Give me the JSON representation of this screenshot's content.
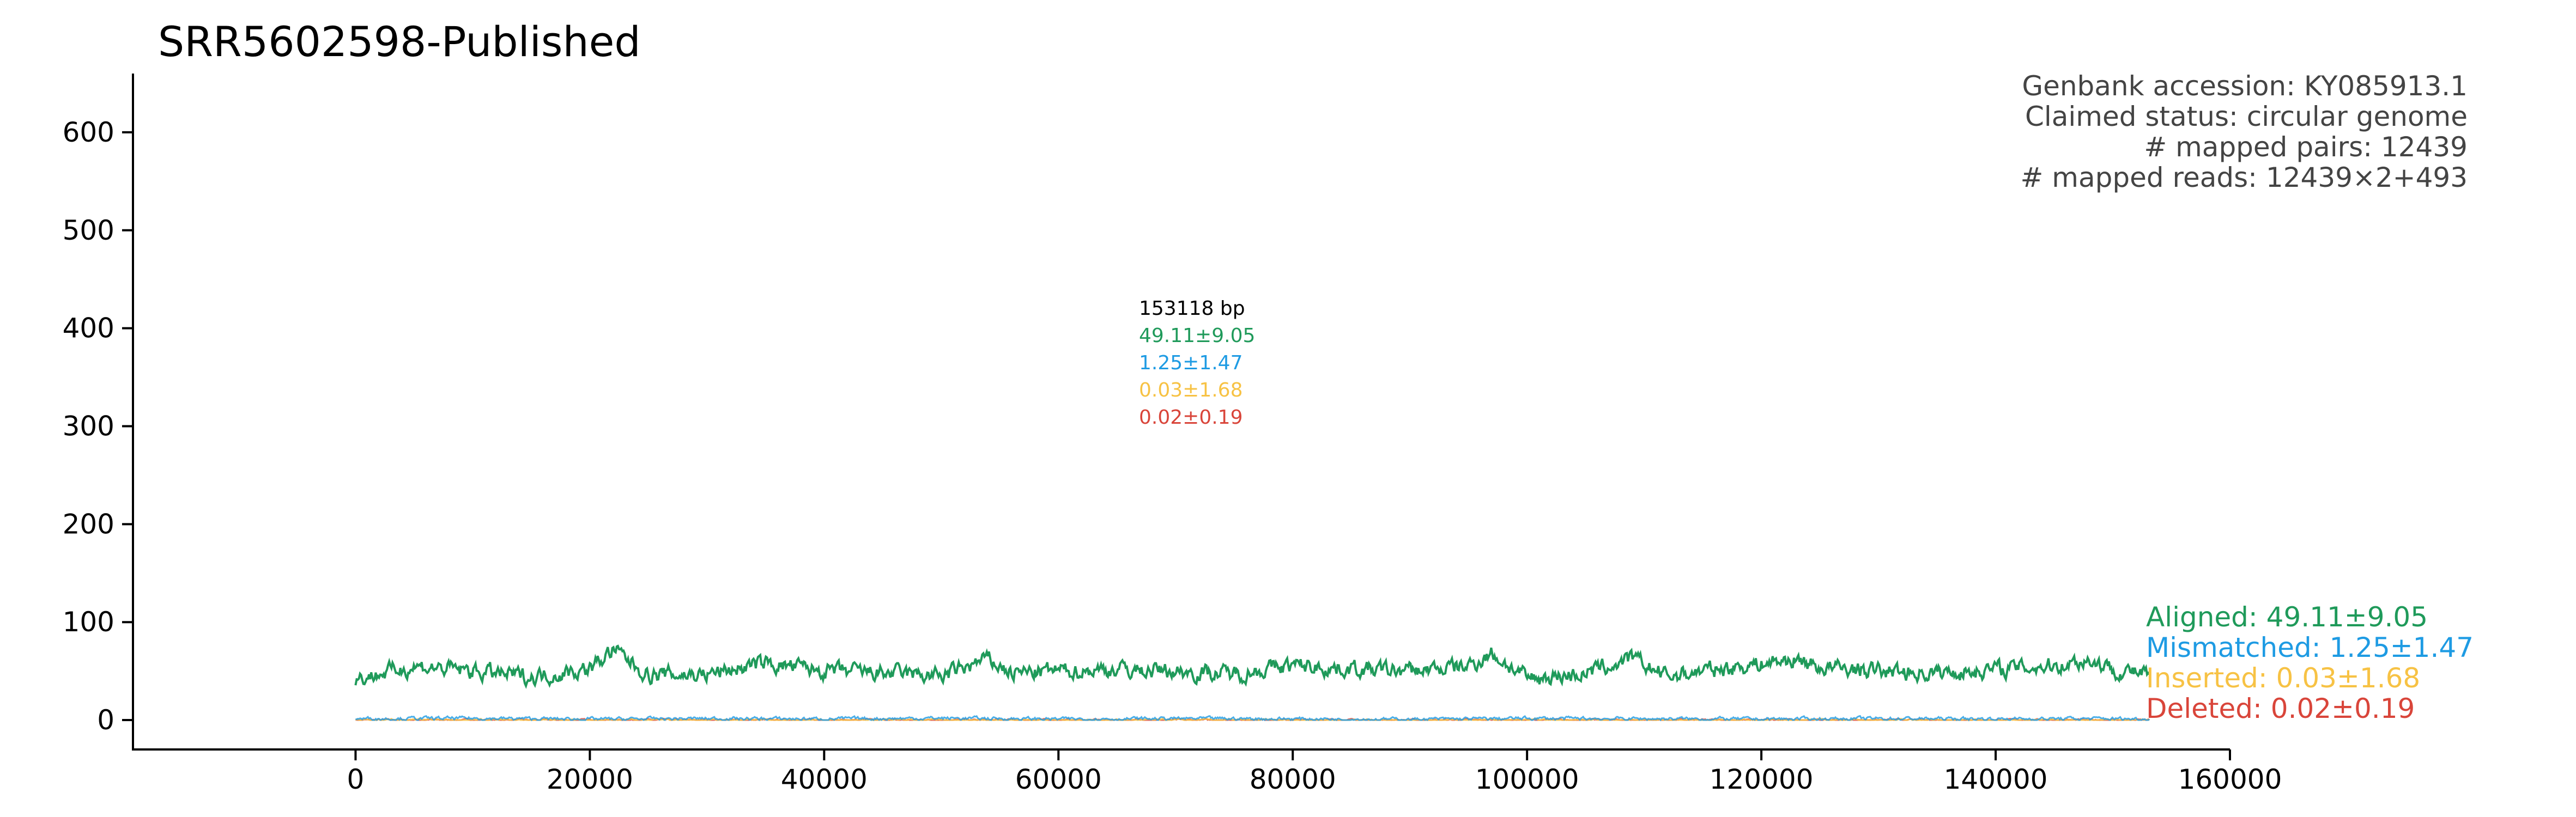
{
  "chart_data": {
    "type": "line",
    "title": "SRR5602598-Published",
    "xlabel": "",
    "ylabel": "",
    "xlim": [
      -19000,
      160000
    ],
    "ylim": [
      -30,
      660
    ],
    "x_ticks": [
      0,
      20000,
      40000,
      60000,
      80000,
      100000,
      120000,
      140000,
      160000
    ],
    "y_ticks": [
      0,
      100,
      200,
      300,
      400,
      500,
      600
    ],
    "grid": false,
    "genome_length": 153118,
    "info_lines": [
      "Genbank accession: KY085913.1",
      "Claimed status: circular genome",
      "# mapped pairs: 12439",
      "# mapped reads: 12439×2+493"
    ],
    "summary": {
      "length_label": "153118 bp",
      "aligned": "49.11±9.05",
      "mismatched": "1.25±1.47",
      "inserted": "0.03±1.68",
      "deleted": "0.02±0.19"
    },
    "legend": {
      "placement": "right",
      "items": [
        "Aligned: 49.11±9.05",
        "Mismatched: 1.25±1.47",
        "Inserted: 0.03±1.68",
        "Deleted: 0.02±0.19"
      ]
    },
    "series": [
      {
        "name": "Aligned",
        "color": "#1f9a5a",
        "mean": 49.11,
        "std": 9.05,
        "x": [
          0,
          5000,
          10000,
          15000,
          20000,
          22000,
          25000,
          30000,
          35000,
          40000,
          45000,
          50000,
          54000,
          56000,
          60000,
          65000,
          70000,
          75000,
          80000,
          85000,
          90000,
          95000,
          97000,
          100000,
          105000,
          109000,
          112000,
          115000,
          120000,
          123000,
          125000,
          130000,
          135000,
          140000,
          145000,
          148000,
          150000,
          153118
        ],
        "y": [
          42,
          55,
          50,
          44,
          52,
          72,
          46,
          47,
          58,
          50,
          48,
          45,
          62,
          48,
          50,
          52,
          50,
          47,
          56,
          52,
          50,
          55,
          68,
          42,
          48,
          62,
          45,
          50,
          58,
          62,
          54,
          50,
          48,
          52,
          56,
          62,
          52,
          46
        ]
      },
      {
        "name": "Mismatched",
        "color": "#1e9be3",
        "mean": 1.25,
        "std": 1.47,
        "x": [
          0,
          10000,
          20000,
          30000,
          40000,
          50000,
          60000,
          70000,
          80000,
          90000,
          100000,
          110000,
          120000,
          130000,
          140000,
          150000,
          153118
        ],
        "y": [
          1.5,
          1.8,
          0.9,
          1.6,
          1.2,
          2.0,
          1.1,
          1.5,
          1.3,
          0.8,
          1.7,
          1.4,
          1.0,
          1.6,
          1.2,
          1.5,
          1.1
        ]
      },
      {
        "name": "Inserted",
        "color": "#f7c244",
        "mean": 0.03,
        "std": 1.68,
        "x": [
          0,
          20000,
          40000,
          60000,
          80000,
          100000,
          120000,
          140000,
          153118
        ],
        "y": [
          0,
          0,
          0,
          0,
          0,
          0,
          0,
          0,
          0
        ]
      },
      {
        "name": "Deleted",
        "color": "#d9453a",
        "mean": 0.02,
        "std": 0.19,
        "x": [
          0,
          20000,
          40000,
          60000,
          80000,
          100000,
          120000,
          140000,
          153118
        ],
        "y": [
          0,
          0,
          0,
          0,
          0,
          0,
          0,
          0,
          0
        ]
      }
    ]
  }
}
